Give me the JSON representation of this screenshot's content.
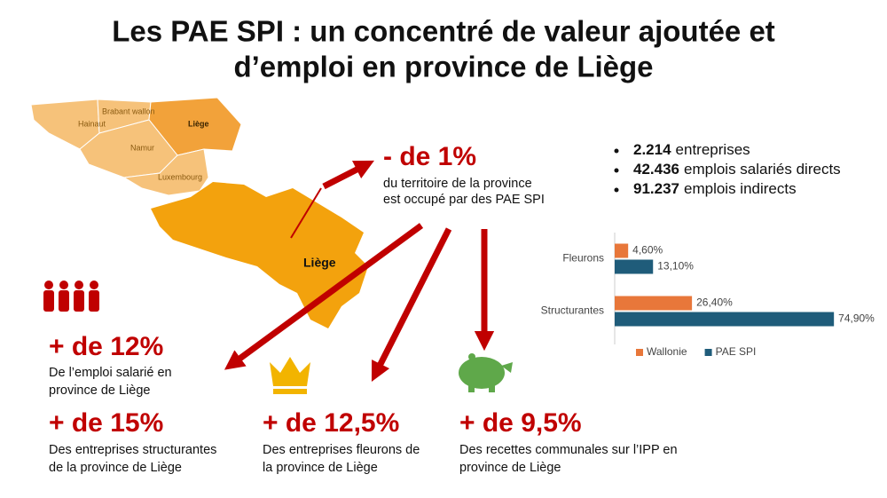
{
  "title": [
    "Les PAE SPI : un concentré de valeur ajoutée et",
    "d’emploi en province de Liège"
  ],
  "map": {
    "regions": [
      "Hainaut",
      "Brabant wallon",
      "Namur",
      "Liège",
      "Luxembourg"
    ],
    "province": "Liège"
  },
  "territory": {
    "value": "- de 1%",
    "text": [
      "du territoire de la province",
      "est occupé par des PAE SPI"
    ]
  },
  "bullets": [
    {
      "number": "2.214",
      "text": "entreprises"
    },
    {
      "number": "42.436",
      "text": "emplois salariés directs"
    },
    {
      "number": "91.237",
      "text": "emplois indirects"
    }
  ],
  "stats": [
    {
      "value": "+ de 12%",
      "text": [
        "De l’emploi salarié en",
        "province de Liège"
      ]
    },
    {
      "value": "+ de 15%",
      "text": [
        "Des entreprises structurantes",
        "de la province de Liège"
      ]
    },
    {
      "value": "+ de 12,5%",
      "text": [
        "Des entreprises fleurons de",
        "la province de Liège"
      ]
    },
    {
      "value": "+ de 9,5%",
      "text": [
        "Des recettes communales sur l’IPP en",
        "province de Liège"
      ]
    }
  ],
  "chart_data": {
    "type": "bar",
    "orientation": "horizontal",
    "categories": [
      "Fleurons",
      "Structurantes"
    ],
    "xlim": [
      0,
      80
    ],
    "series": [
      {
        "name": "Wallonie",
        "color": "#e8773a",
        "values": [
          4.6,
          26.4
        ],
        "value_labels": [
          "4,60%",
          "26,40%"
        ]
      },
      {
        "name": "PAE SPI",
        "color": "#1f5c7a",
        "values": [
          13.1,
          74.9
        ],
        "value_labels": [
          "13,10%",
          "74,90%"
        ]
      }
    ]
  }
}
